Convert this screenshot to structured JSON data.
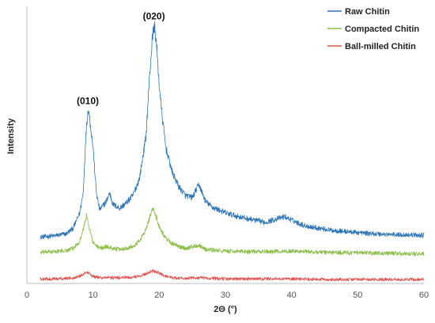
{
  "chart_data": {
    "type": "line",
    "title": "",
    "xlabel": "2Θ (°)",
    "ylabel": "Intensity",
    "xlim": [
      0,
      60
    ],
    "xticks": [
      "0",
      "10",
      "20",
      "30",
      "40",
      "50",
      "60"
    ],
    "y_ticks_shown": false,
    "grid": false,
    "legend_position": "top-right",
    "annotations": [
      {
        "text": "(010)",
        "x": 9.2
      },
      {
        "text": "(020)",
        "x": 19.2
      }
    ],
    "series": [
      {
        "name": "Raw Chitin",
        "color": "#2e75b6",
        "x": [
          2,
          4,
          6,
          7,
          8,
          8.5,
          9,
          9.3,
          10,
          10.5,
          11,
          12,
          12.5,
          13,
          14,
          15,
          16,
          17,
          18,
          18.5,
          19,
          19.3,
          19.6,
          20,
          20.5,
          21,
          22,
          23,
          24,
          25,
          26,
          27,
          28,
          30,
          32,
          34,
          36,
          38,
          39,
          40,
          42,
          44,
          46,
          48,
          50,
          52,
          54,
          56,
          58,
          60
        ],
        "y": [
          0.82,
          0.84,
          0.88,
          0.98,
          1.25,
          1.6,
          2.8,
          3.1,
          2.4,
          1.6,
          1.3,
          1.45,
          1.6,
          1.4,
          1.33,
          1.42,
          1.55,
          1.85,
          2.6,
          3.6,
          4.4,
          4.55,
          4.2,
          3.5,
          2.9,
          2.4,
          1.95,
          1.7,
          1.55,
          1.52,
          1.75,
          1.45,
          1.35,
          1.25,
          1.18,
          1.13,
          1.08,
          1.15,
          1.18,
          1.12,
          1.02,
          0.98,
          0.94,
          0.92,
          0.9,
          0.88,
          0.87,
          0.86,
          0.86,
          0.85
        ]
      },
      {
        "name": "Compacted Chitin",
        "color": "#8dbe4a",
        "x": [
          2,
          4,
          6,
          7,
          8,
          8.5,
          9,
          9.5,
          10,
          11,
          12,
          13,
          14,
          15,
          16,
          17,
          18,
          18.5,
          19,
          19.5,
          20,
          21,
          22,
          23,
          24,
          26,
          27,
          30,
          35,
          40,
          45,
          50,
          55,
          60
        ],
        "y": [
          0.55,
          0.56,
          0.58,
          0.62,
          0.75,
          0.95,
          1.2,
          0.95,
          0.72,
          0.62,
          0.65,
          0.62,
          0.6,
          0.62,
          0.66,
          0.75,
          0.95,
          1.15,
          1.33,
          1.2,
          1.0,
          0.8,
          0.7,
          0.65,
          0.62,
          0.68,
          0.6,
          0.57,
          0.56,
          0.57,
          0.55,
          0.54,
          0.53,
          0.52
        ]
      },
      {
        "name": "Ball-milled Chitin",
        "color": "#e0504c",
        "x": [
          2,
          4,
          6,
          7,
          8,
          9,
          10,
          11,
          12,
          14,
          16,
          17,
          18,
          19,
          20,
          21,
          22,
          24,
          26,
          30,
          35,
          40,
          45,
          50,
          55,
          60
        ],
        "y": [
          0.08,
          0.08,
          0.09,
          0.1,
          0.13,
          0.2,
          0.13,
          0.1,
          0.1,
          0.1,
          0.11,
          0.13,
          0.17,
          0.22,
          0.18,
          0.13,
          0.1,
          0.09,
          0.1,
          0.08,
          0.08,
          0.08,
          0.07,
          0.07,
          0.07,
          0.07
        ]
      }
    ]
  }
}
